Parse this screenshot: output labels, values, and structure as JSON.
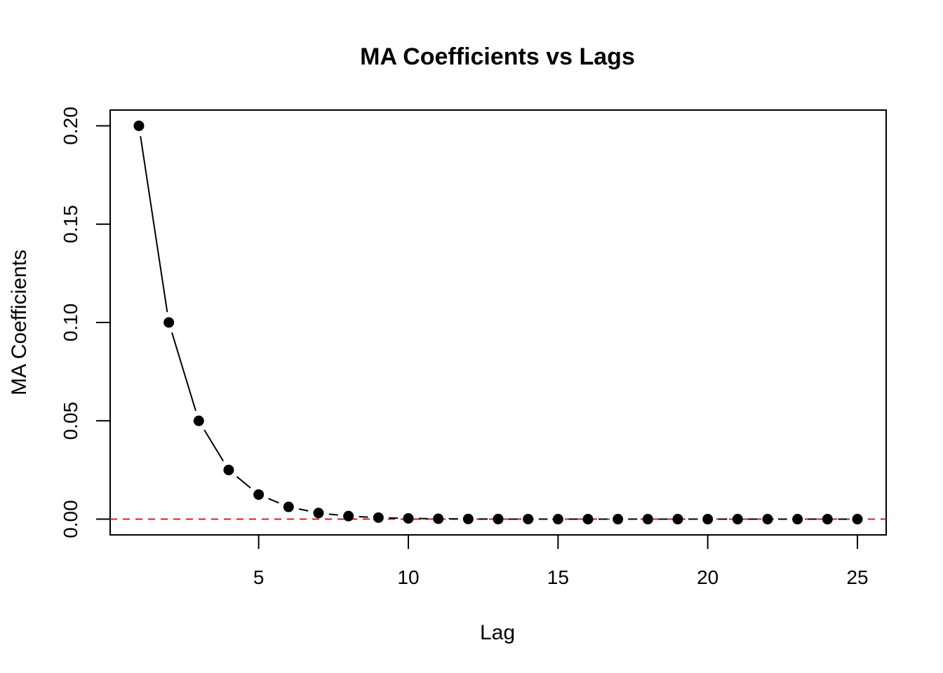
{
  "chart_data": {
    "type": "line",
    "title": "MA Coefficients vs Lags",
    "xlabel": "Lag",
    "ylabel": "MA Coefficients",
    "x": [
      1,
      2,
      3,
      4,
      5,
      6,
      7,
      8,
      9,
      10,
      11,
      12,
      13,
      14,
      15,
      16,
      17,
      18,
      19,
      20,
      21,
      22,
      23,
      24,
      25
    ],
    "series": [
      {
        "values": [
          0.2,
          0.1,
          0.05,
          0.025,
          0.0125,
          0.00625,
          0.003125,
          0.0015625,
          0.00078125,
          0.000390625,
          0.000195313,
          9.76563e-05,
          4.88281e-05,
          2.44141e-05,
          1.2207e-05,
          6.1035e-06,
          3.0518e-06,
          1.5259e-06,
          7.629e-07,
          3.815e-07,
          1.907e-07,
          9.54e-08,
          4.77e-08,
          2.38e-08,
          1.19e-08
        ],
        "color": "#000000",
        "marker": "filled-circle",
        "line": "solid"
      }
    ],
    "reference_line": {
      "y": 0,
      "color": "#e41a1c",
      "style": "dashed"
    },
    "xticks": [
      5,
      10,
      15,
      20,
      25
    ],
    "yticks": [
      0.0,
      0.05,
      0.1,
      0.15,
      0.2
    ],
    "xtick_labels": [
      "5",
      "10",
      "15",
      "20",
      "25"
    ],
    "ytick_labels": [
      "0.00",
      "0.05",
      "0.10",
      "0.15",
      "0.20"
    ],
    "xlim": [
      0.04,
      25.96
    ],
    "ylim": [
      -0.008,
      0.208
    ],
    "grid": false,
    "legend": "none"
  }
}
